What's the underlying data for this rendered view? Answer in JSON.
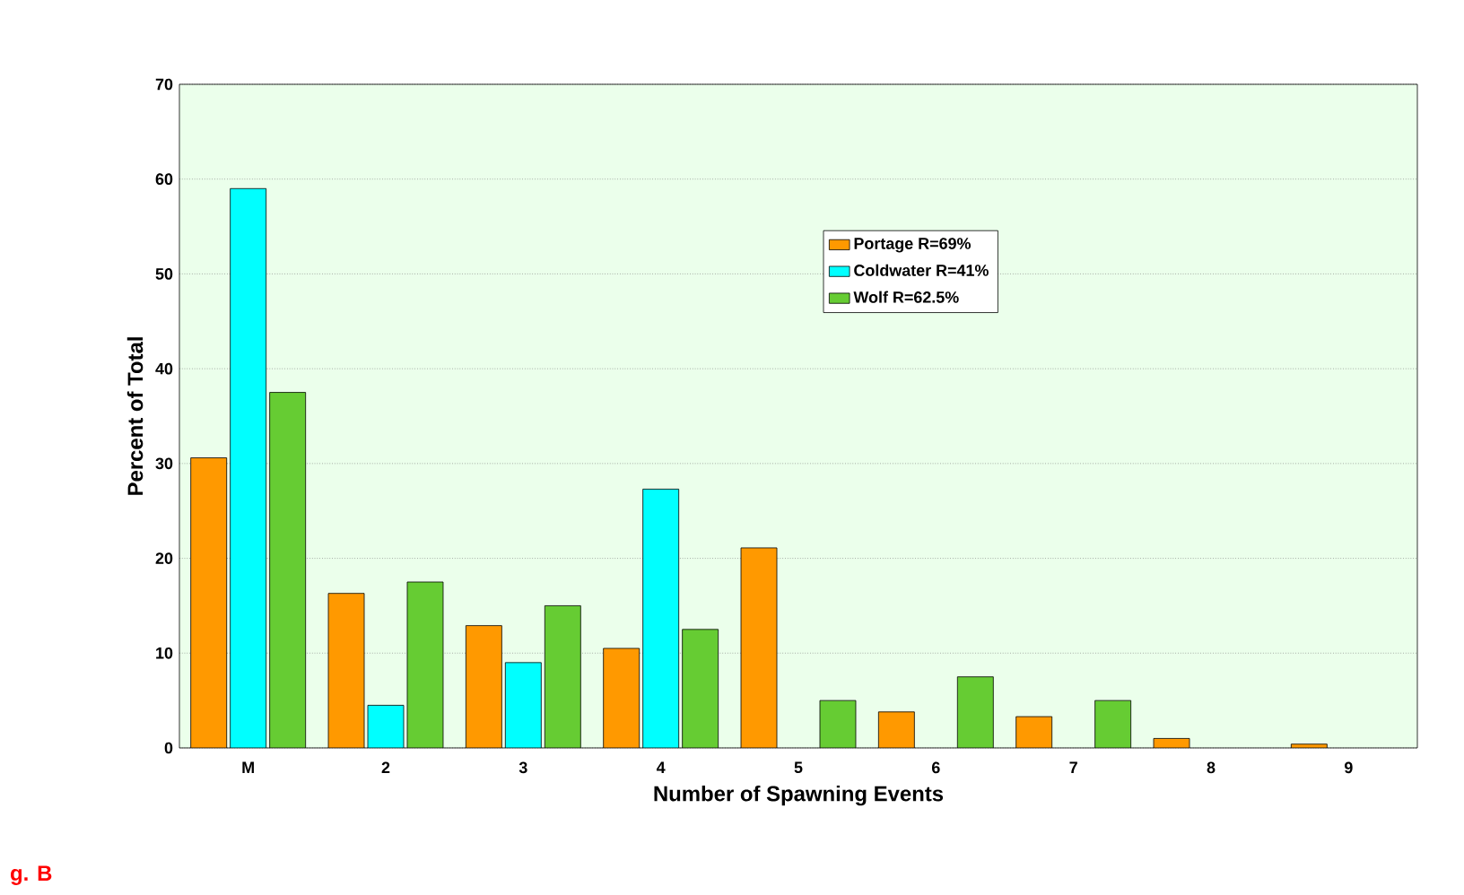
{
  "chart_data": {
    "type": "bar",
    "xlabel": "Number of Spawning Events",
    "ylabel": "Percent of Total",
    "categories": [
      "M",
      "2",
      "3",
      "4",
      "5",
      "6",
      "7",
      "8",
      "9"
    ],
    "series": [
      {
        "name": "Portage R=69%",
        "color": "#ff9900",
        "values": [
          30.6,
          16.3,
          12.9,
          10.5,
          21.1,
          3.8,
          3.3,
          1.0,
          0.4
        ]
      },
      {
        "name": "Coldwater R=41%",
        "color": "#00ffff",
        "values": [
          59.0,
          4.5,
          9.0,
          27.3,
          null,
          null,
          null,
          null,
          null
        ]
      },
      {
        "name": "Wolf R=62.5%",
        "color": "#66cc33",
        "values": [
          37.5,
          17.5,
          15.0,
          12.5,
          5.0,
          7.5,
          5.0,
          null,
          null
        ]
      }
    ],
    "ylim": [
      0,
      70
    ],
    "yticks": [
      0,
      10,
      20,
      30,
      40,
      50,
      60,
      70
    ],
    "grid": "y",
    "legend": "top right",
    "annotations": [
      "g. B"
    ]
  }
}
